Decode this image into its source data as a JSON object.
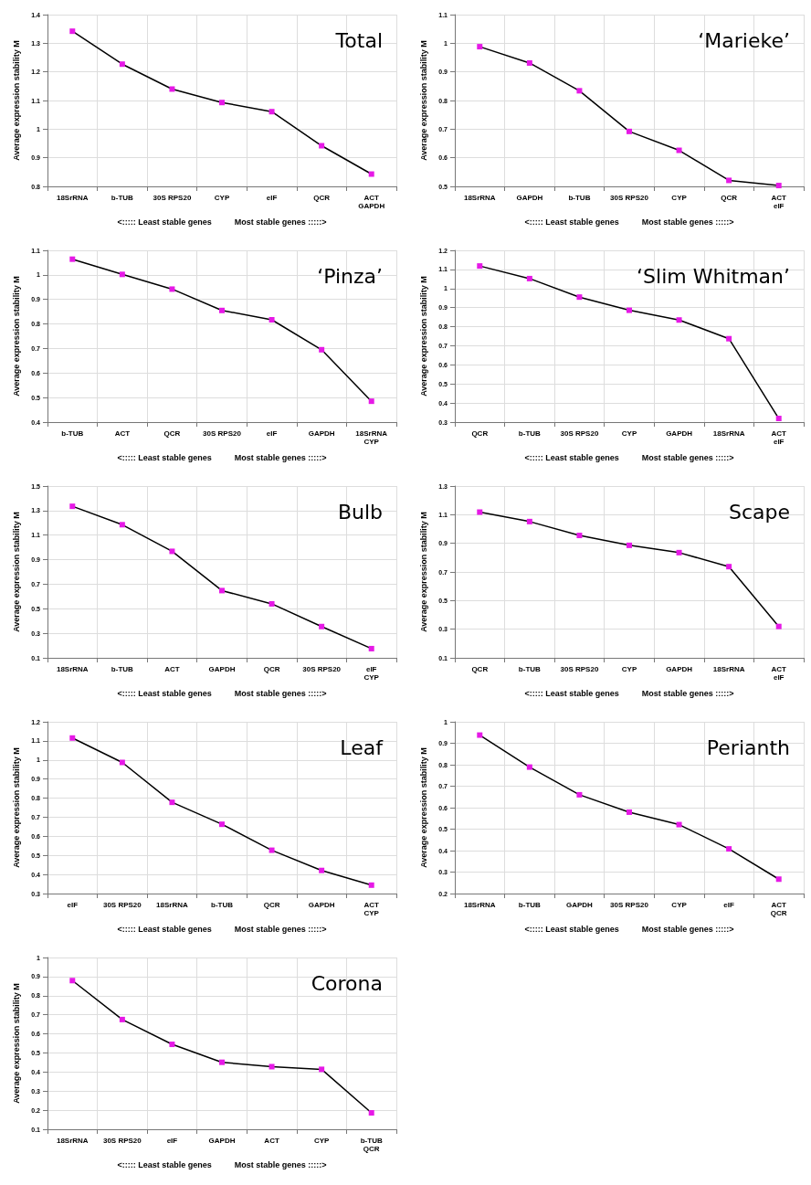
{
  "chart_data": [
    {
      "type": "line",
      "title": "Total",
      "xlabel": "<::::: Least stable genes          Most stable genes :::::>",
      "ylabel": "Average expression stability M",
      "categories": [
        "18SrRNA",
        "b-TUB",
        "30S RPS20",
        "CYP",
        "eIF",
        "QCR",
        "ACT\nGAPDH"
      ],
      "series": [
        {
          "color": "#e619e6",
          "values": [
            1.342,
            1.227,
            1.14,
            1.093,
            1.061,
            0.942,
            0.843
          ]
        }
      ],
      "ylim": [
        0.8,
        1.4
      ],
      "yticks": [
        0.8,
        0.9,
        1,
        1.1,
        1.2,
        1.3,
        1.4
      ],
      "grid": true,
      "marker": "square"
    },
    {
      "type": "line",
      "title": "‘Marieke’",
      "xlabel": "<::::: Least stable genes          Most stable genes :::::>",
      "ylabel": "Average expression stability M",
      "categories": [
        "18SrRNA",
        "GAPDH",
        "b-TUB",
        "30S RPS20",
        "CYP",
        "QCR",
        "ACT\neIF"
      ],
      "series": [
        {
          "color": "#e619e6",
          "values": [
            0.988,
            0.931,
            0.834,
            0.692,
            0.626,
            0.521,
            0.503
          ]
        }
      ],
      "ylim": [
        0.5,
        1.1
      ],
      "yticks": [
        0.5,
        0.6,
        0.7,
        0.8,
        0.9,
        1,
        1.1
      ],
      "grid": true,
      "marker": "square"
    },
    {
      "type": "line",
      "title": "‘Pinza’",
      "xlabel": "<::::: Least stable genes          Most stable genes :::::>",
      "ylabel": "Average expression stability M",
      "categories": [
        "b-TUB",
        "ACT",
        "QCR",
        "30S RPS20",
        "eIF",
        "GAPDH",
        "18SrRNA\nCYP"
      ],
      "series": [
        {
          "color": "#e619e6",
          "values": [
            1.064,
            1.002,
            0.942,
            0.855,
            0.817,
            0.695,
            0.485
          ]
        }
      ],
      "ylim": [
        0.4,
        1.1
      ],
      "yticks": [
        0.4,
        0.5,
        0.6,
        0.7,
        0.8,
        0.9,
        1,
        1.1
      ],
      "grid": true,
      "marker": "square"
    },
    {
      "type": "line",
      "title": "‘Slim Whitman’",
      "xlabel": "<::::: Least stable genes          Most stable genes :::::>",
      "ylabel": "Average expression stability M",
      "categories": [
        "QCR",
        "b-TUB",
        "30S RPS20",
        "CYP",
        "GAPDH",
        "18SrRNA",
        "ACT\neIF"
      ],
      "series": [
        {
          "color": "#e619e6",
          "values": [
            1.118,
            1.052,
            0.955,
            0.886,
            0.835,
            0.737,
            0.319
          ]
        }
      ],
      "ylim": [
        0.3,
        1.2
      ],
      "yticks": [
        0.3,
        0.4,
        0.5,
        0.6,
        0.7,
        0.8,
        0.9,
        1,
        1.1,
        1.2
      ],
      "grid": true,
      "marker": "square"
    },
    {
      "type": "line",
      "title": "Bulb",
      "xlabel": "<::::: Least stable genes          Most stable genes :::::>",
      "ylabel": "Average expression stability M",
      "categories": [
        "18SrRNA",
        "b-TUB",
        "ACT",
        "GAPDH",
        "QCR",
        "30S RPS20",
        "eIF\nCYP"
      ],
      "series": [
        {
          "color": "#e619e6",
          "values": [
            1.335,
            1.185,
            0.968,
            0.648,
            0.54,
            0.355,
            0.175
          ]
        }
      ],
      "ylim": [
        0.1,
        1.5
      ],
      "yticks": [
        0.1,
        0.3,
        0.5,
        0.7,
        0.9,
        1.1,
        1.3,
        1.5
      ],
      "grid": true,
      "marker": "square"
    },
    {
      "type": "line",
      "title": "Scape",
      "xlabel": "<::::: Least stable genes          Most stable genes :::::>",
      "ylabel": "Average expression stability M",
      "categories": [
        "QCR",
        "b-TUB",
        "30S RPS20",
        "CYP",
        "GAPDH",
        "18SrRNA",
        "ACT\neIF"
      ],
      "series": [
        {
          "color": "#e619e6",
          "values": [
            1.118,
            1.052,
            0.955,
            0.886,
            0.835,
            0.737,
            0.319
          ]
        }
      ],
      "ylim": [
        0.1,
        1.3
      ],
      "yticks": [
        0.1,
        0.3,
        0.5,
        0.7,
        0.9,
        1.1,
        1.3
      ],
      "grid": true,
      "marker": "square"
    },
    {
      "type": "line",
      "title": "Leaf",
      "xlabel": "<::::: Least stable genes          Most stable genes :::::>",
      "ylabel": "Average expression stability M",
      "categories": [
        "eIF",
        "30S RPS20",
        "18SrRNA",
        "b-TUB",
        "QCR",
        "GAPDH",
        "ACT\nCYP"
      ],
      "series": [
        {
          "color": "#e619e6",
          "values": [
            1.115,
            0.987,
            0.778,
            0.663,
            0.527,
            0.421,
            0.344
          ]
        }
      ],
      "ylim": [
        0.3,
        1.2
      ],
      "yticks": [
        0.3,
        0.4,
        0.5,
        0.6,
        0.7,
        0.8,
        0.9,
        1,
        1.1,
        1.2
      ],
      "grid": true,
      "marker": "square"
    },
    {
      "type": "line",
      "title": "Perianth",
      "xlabel": "<::::: Least stable genes          Most stable genes :::::>",
      "ylabel": "Average expression stability M",
      "categories": [
        "18SrRNA",
        "b-TUB",
        "GAPDH",
        "30S RPS20",
        "CYP",
        "eIF",
        "ACT\nQCR"
      ],
      "series": [
        {
          "color": "#e619e6",
          "values": [
            0.938,
            0.789,
            0.66,
            0.579,
            0.521,
            0.408,
            0.267
          ]
        }
      ],
      "ylim": [
        0.2,
        1
      ],
      "yticks": [
        0.2,
        0.3,
        0.4,
        0.5,
        0.6,
        0.7,
        0.8,
        0.9,
        1
      ],
      "grid": true,
      "marker": "square"
    },
    {
      "type": "line",
      "title": "Corona",
      "xlabel": "<::::: Least stable genes          Most stable genes :::::>",
      "ylabel": "Average expression stability M",
      "categories": [
        "18SrRNA",
        "30S RPS20",
        "eIF",
        "GAPDH",
        "ACT",
        "CYP",
        "b-TUB\nQCR"
      ],
      "series": [
        {
          "color": "#e619e6",
          "values": [
            0.879,
            0.675,
            0.545,
            0.451,
            0.428,
            0.414,
            0.186
          ]
        }
      ],
      "ylim": [
        0.1,
        1
      ],
      "yticks": [
        0.1,
        0.2,
        0.3,
        0.4,
        0.5,
        0.6,
        0.7,
        0.8,
        0.9,
        1
      ],
      "grid": true,
      "marker": "square"
    }
  ]
}
